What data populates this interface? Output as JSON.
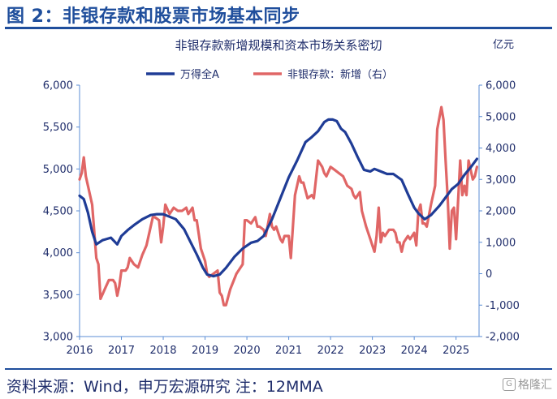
{
  "header": {
    "title": "图 2：非银存款和股票市场基本同步"
  },
  "footer": {
    "source": "资料来源：Wind，申万宏源研究 注：12MMA",
    "watermark": "格隆汇"
  },
  "colors": {
    "brand": "#1f4e9c",
    "series_wind": "#1f3c96",
    "series_deposit": "#e06666"
  },
  "chart_data": {
    "type": "line",
    "title": "非银存款新增规模和资本市场关系密切",
    "unit_right": "亿元",
    "x_ticks": [
      "2016",
      "2017",
      "2018",
      "2019",
      "2020",
      "2021",
      "2022",
      "2023",
      "2024",
      "2025"
    ],
    "xlim": [
      2016.0,
      2025.55
    ],
    "y_left": {
      "range": [
        3000,
        6000
      ],
      "ticks": [
        "3,000",
        "3,500",
        "4,000",
        "4,500",
        "5,000",
        "5,500",
        "6,000"
      ]
    },
    "y_right": {
      "range": [
        -2000,
        6000
      ],
      "ticks": [
        "-2,000",
        "-1,000",
        "0",
        "1,000",
        "2,000",
        "3,000",
        "4,000",
        "5,000",
        "6,000"
      ]
    },
    "series": [
      {
        "name": "万得全A",
        "axis": "left",
        "x": [
          2016.0,
          2016.1,
          2016.2,
          2016.3,
          2016.4,
          2016.55,
          2016.75,
          2016.9,
          2017.0,
          2017.15,
          2017.3,
          2017.5,
          2017.7,
          2017.85,
          2018.0,
          2018.1,
          2018.3,
          2018.5,
          2018.65,
          2018.8,
          2018.95,
          2019.05,
          2019.2,
          2019.35,
          2019.5,
          2019.7,
          2019.9,
          2020.1,
          2020.25,
          2020.4,
          2020.6,
          2020.8,
          2021.0,
          2021.2,
          2021.4,
          2021.55,
          2021.7,
          2021.85,
          2021.95,
          2022.05,
          2022.15,
          2022.25,
          2022.35,
          2022.5,
          2022.65,
          2022.8,
          2022.95,
          2023.05,
          2023.2,
          2023.35,
          2023.5,
          2023.7,
          2023.85,
          2024.0,
          2024.1,
          2024.25,
          2024.4,
          2024.6,
          2024.75,
          2024.9,
          2025.05,
          2025.2,
          2025.35,
          2025.5
        ],
        "y": [
          4680,
          4640,
          4480,
          4250,
          4100,
          4150,
          4180,
          4100,
          4200,
          4270,
          4330,
          4400,
          4450,
          4460,
          4460,
          4440,
          4400,
          4280,
          4130,
          3980,
          3820,
          3740,
          3720,
          3740,
          3820,
          3950,
          4050,
          4120,
          4140,
          4200,
          4400,
          4650,
          4900,
          5100,
          5320,
          5380,
          5450,
          5560,
          5590,
          5590,
          5570,
          5480,
          5440,
          5300,
          5140,
          4990,
          4970,
          5000,
          4970,
          4940,
          4940,
          4870,
          4700,
          4540,
          4470,
          4400,
          4450,
          4560,
          4660,
          4760,
          4820,
          4930,
          5020,
          5120
        ]
      },
      {
        "name": "非银存款：新增（右）",
        "axis": "right",
        "x": [
          2016.0,
          2016.05,
          2016.1,
          2016.15,
          2016.2,
          2016.3,
          2016.4,
          2016.45,
          2016.5,
          2016.6,
          2016.7,
          2016.8,
          2016.85,
          2016.9,
          2016.95,
          2017.0,
          2017.1,
          2017.15,
          2017.2,
          2017.3,
          2017.4,
          2017.5,
          2017.6,
          2017.7,
          2017.75,
          2017.8,
          2017.9,
          2017.95,
          2018.0,
          2018.05,
          2018.15,
          2018.25,
          2018.35,
          2018.45,
          2018.55,
          2018.6,
          2018.7,
          2018.75,
          2018.8,
          2018.9,
          2019.0,
          2019.05,
          2019.1,
          2019.2,
          2019.3,
          2019.35,
          2019.4,
          2019.45,
          2019.5,
          2019.6,
          2019.75,
          2019.9,
          2019.95,
          2020.0,
          2020.1,
          2020.2,
          2020.25,
          2020.3,
          2020.4,
          2020.45,
          2020.55,
          2020.6,
          2020.65,
          2020.7,
          2020.8,
          2020.85,
          2020.9,
          2021.0,
          2021.05,
          2021.15,
          2021.25,
          2021.3,
          2021.35,
          2021.45,
          2021.55,
          2021.6,
          2021.7,
          2021.8,
          2021.85,
          2021.9,
          2022.0,
          2022.1,
          2022.2,
          2022.3,
          2022.4,
          2022.5,
          2022.55,
          2022.6,
          2022.7,
          2022.75,
          2022.85,
          2022.95,
          2023.0,
          2023.05,
          2023.1,
          2023.15,
          2023.2,
          2023.25,
          2023.3,
          2023.4,
          2023.5,
          2023.55,
          2023.6,
          2023.65,
          2023.7,
          2023.75,
          2023.85,
          2023.9,
          2024.0,
          2024.05,
          2024.1,
          2024.15,
          2024.2,
          2024.25,
          2024.3,
          2024.4,
          2024.5,
          2024.55,
          2024.65,
          2024.7,
          2024.75,
          2024.8,
          2024.85,
          2024.9,
          2024.95,
          2025.0,
          2025.1,
          2025.15,
          2025.2,
          2025.25,
          2025.3,
          2025.4,
          2025.45,
          2025.5
        ],
        "y": [
          3000,
          3200,
          3700,
          3100,
          2800,
          2200,
          500,
          300,
          -800,
          -500,
          -200,
          -200,
          -300,
          -700,
          -400,
          100,
          100,
          200,
          500,
          300,
          200,
          600,
          900,
          1500,
          1800,
          1800,
          1700,
          1000,
          1500,
          2200,
          1900,
          2100,
          2000,
          2000,
          2100,
          1900,
          2100,
          1700,
          1700,
          800,
          400,
          0,
          -100,
          0,
          100,
          -600,
          -700,
          -1000,
          -1000,
          -500,
          0,
          300,
          1700,
          1700,
          1600,
          1800,
          1500,
          1500,
          1400,
          1200,
          1900,
          1500,
          1400,
          1500,
          1100,
          1000,
          1200,
          1200,
          500,
          2500,
          3100,
          2900,
          2900,
          2400,
          2500,
          2400,
          3600,
          3400,
          3200,
          3100,
          3400,
          3300,
          3200,
          3100,
          2800,
          2700,
          2500,
          2400,
          2600,
          2000,
          1500,
          1100,
          900,
          700,
          1200,
          2100,
          1000,
          1300,
          1200,
          1400,
          1400,
          1300,
          1000,
          1000,
          700,
          1000,
          1200,
          1100,
          1300,
          900,
          2000,
          2200,
          1600,
          1600,
          1500,
          2200,
          2800,
          4600,
          5300,
          4900,
          3600,
          2400,
          800,
          2000,
          2100,
          1100,
          3600,
          2500,
          2800,
          2500,
          3600,
          3000,
          3100,
          3400
        ]
      }
    ]
  }
}
